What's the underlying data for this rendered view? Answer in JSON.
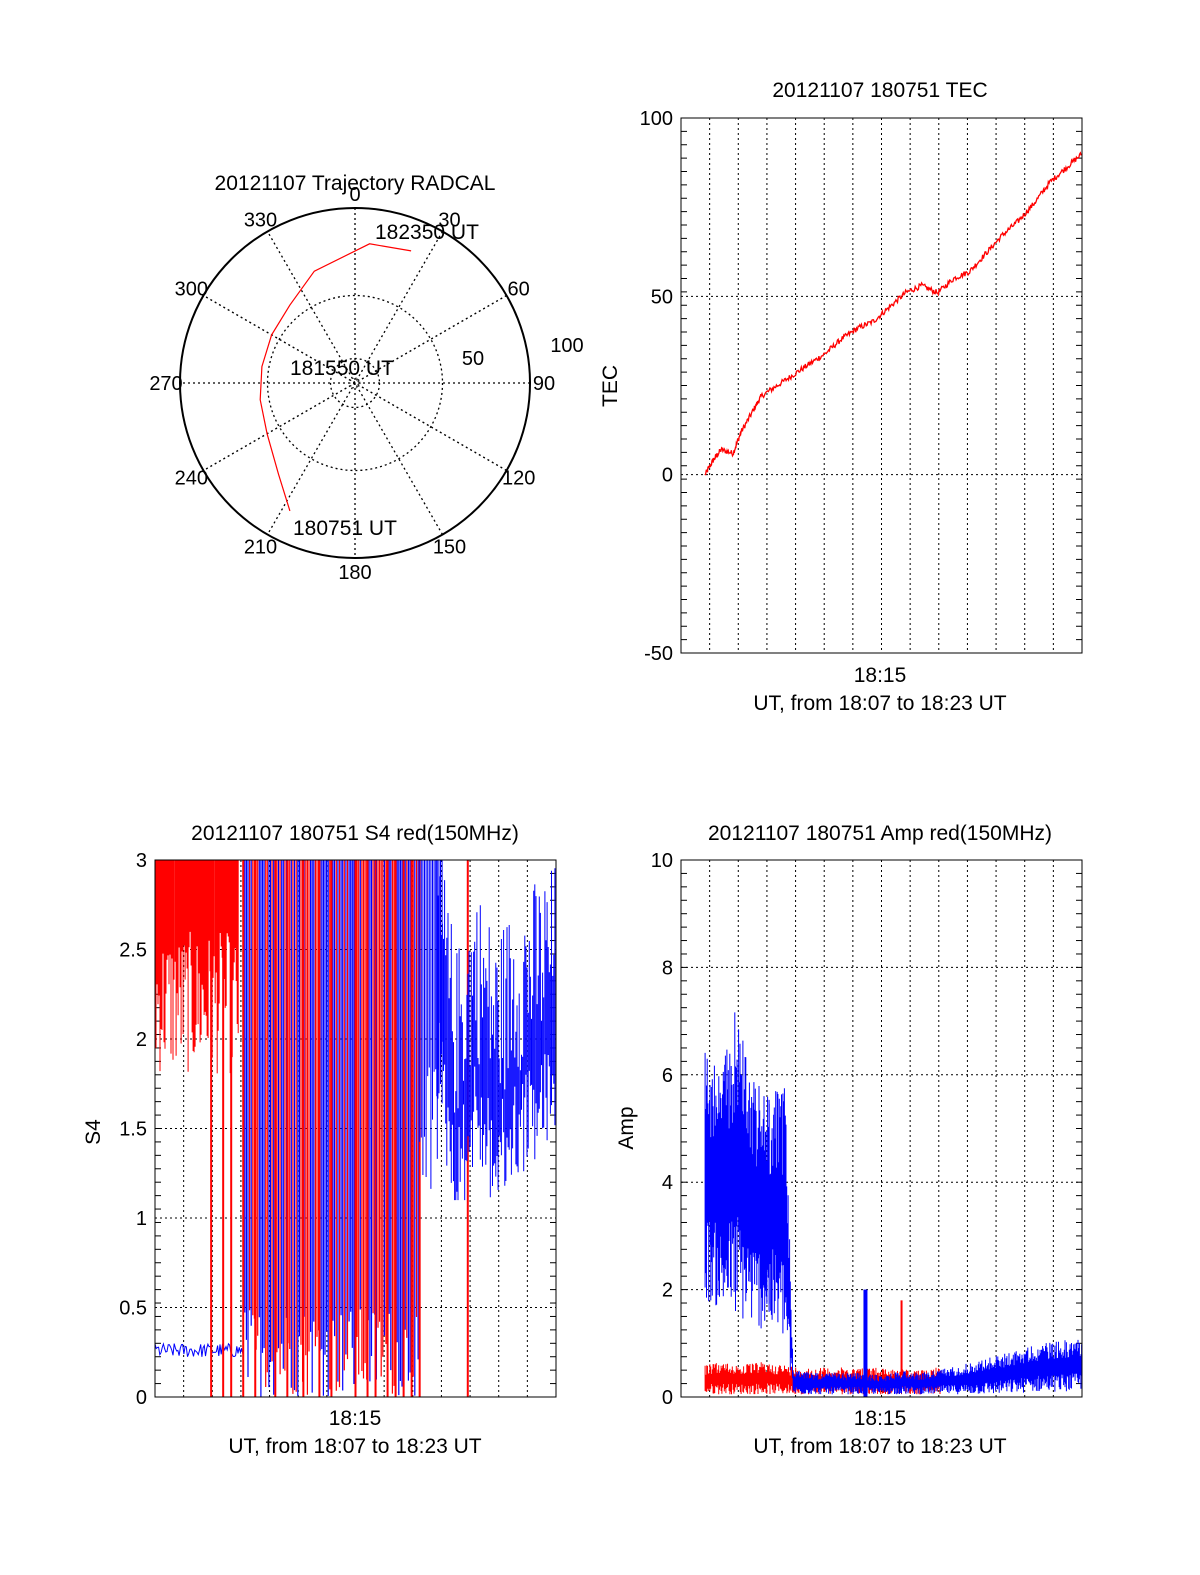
{
  "colors": {
    "red_series": "#ff0000",
    "blue_series": "#0000ff",
    "grid": "#000000",
    "background": "#ffffff"
  },
  "chart_data": [
    {
      "id": "trajectory",
      "type": "polar",
      "title": "20121107 Trajectory RADCAL",
      "angle_labels": [
        "0",
        "30",
        "60",
        "90",
        "120",
        "150",
        "180",
        "210",
        "240",
        "270",
        "300",
        "330"
      ],
      "radial_labels": [
        "50",
        "100"
      ],
      "radial_range": [
        0,
        100
      ],
      "annotations": [
        "182350 UT",
        "181550 UT",
        "180751 UT"
      ],
      "trajectory": {
        "color": "red",
        "points": [
          {
            "azimuth": 23,
            "elevation": 18
          },
          {
            "azimuth": 6,
            "elevation": 20
          },
          {
            "azimuth": -20,
            "elevation": 32
          },
          {
            "azimuth": -40,
            "elevation": 42
          },
          {
            "azimuth": -60,
            "elevation": 45
          },
          {
            "azimuth": -80,
            "elevation": 46
          },
          {
            "azimuth": -100,
            "elevation": 45
          },
          {
            "azimuth": -120,
            "elevation": 42
          },
          {
            "azimuth": -140,
            "elevation": 32
          },
          {
            "azimuth": -153,
            "elevation": 18
          }
        ]
      }
    },
    {
      "id": "tec",
      "type": "line",
      "title": "20121107 180751 TEC",
      "ylabel": "TEC",
      "xlabel": "UT, from 18:07 to 18:23 UT",
      "x_tick_label": "18:15",
      "y_ticks": [
        "-50",
        "0",
        "50",
        "100"
      ],
      "ylim": [
        -50,
        100
      ],
      "xlim": [
        0,
        1
      ],
      "grid": true,
      "series": [
        {
          "color": "red",
          "x": [
            0.06,
            0.08,
            0.1,
            0.13,
            0.15,
            0.18,
            0.2,
            0.24,
            0.28,
            0.32,
            0.36,
            0.4,
            0.44,
            0.48,
            0.52,
            0.56,
            0.6,
            0.64,
            0.68,
            0.72,
            0.76,
            0.8,
            0.84,
            0.88,
            0.92,
            0.96,
            1.0
          ],
          "y": [
            0,
            4,
            7,
            6,
            12,
            18,
            22,
            25,
            28,
            31,
            34,
            38,
            41,
            43,
            47,
            51,
            53,
            51,
            55,
            57,
            62,
            67,
            71,
            76,
            82,
            86,
            90
          ]
        }
      ]
    },
    {
      "id": "s4",
      "type": "line",
      "title": "20121107 180751 S4 red(150MHz)",
      "ylabel": "S4",
      "xlabel": "UT, from 18:07 to 18:23 UT",
      "x_tick_label": "18:15",
      "y_ticks": [
        "0",
        "0.5",
        "1",
        "1.5",
        "2",
        "2.5",
        "3"
      ],
      "ylim": [
        0,
        3
      ],
      "xlim": [
        0,
        1
      ],
      "grid": true,
      "series": [
        {
          "color": "red",
          "segments": [
            {
              "x_range": [
                0.0,
                0.21
              ],
              "low": 1.8,
              "high": 3.0,
              "note": "dense spikes near top"
            },
            {
              "x_range": [
                0.21,
                0.67
              ],
              "low": 0.0,
              "high": 3.0,
              "note": "full-range vertical spikes"
            }
          ],
          "spikes_x": [
            0.14,
            0.17,
            0.19,
            0.22,
            0.25,
            0.3,
            0.33,
            0.37,
            0.41,
            0.44,
            0.5,
            0.53,
            0.55,
            0.58,
            0.6,
            0.62,
            0.64,
            0.66,
            0.78
          ]
        },
        {
          "color": "blue",
          "segments": [
            {
              "x_range": [
                0.0,
                0.22
              ],
              "low": 0.22,
              "high": 0.3,
              "note": "flat ~0.25"
            },
            {
              "x_range": [
                0.22,
                0.66
              ],
              "low": 0.0,
              "high": 3.0,
              "note": "full-range spikes"
            },
            {
              "x_range": [
                0.66,
                1.0
              ],
              "low": 1.3,
              "high": 3.0,
              "note": "noisy ~1.8-2.2"
            }
          ],
          "trend_x": [
            0.7,
            0.75,
            0.8,
            0.85,
            0.9,
            0.95,
            1.0
          ],
          "trend_y": [
            2.3,
            1.5,
            1.9,
            1.6,
            1.8,
            1.9,
            2.0
          ]
        }
      ]
    },
    {
      "id": "amp",
      "type": "line",
      "title": "20121107 180751 Amp red(150MHz)",
      "ylabel": "Amp",
      "xlabel": "UT, from 18:07 to 18:23 UT",
      "x_tick_label": "18:15",
      "y_ticks": [
        "0",
        "2",
        "4",
        "6",
        "8",
        "10"
      ],
      "ylim": [
        0,
        10
      ],
      "xlim": [
        0,
        1
      ],
      "grid": true,
      "series": [
        {
          "color": "blue",
          "x": [
            0.06,
            0.1,
            0.14,
            0.18,
            0.22,
            0.26,
            0.28,
            0.35,
            0.45,
            0.5,
            0.55,
            0.6,
            0.7,
            0.8,
            0.9,
            1.0
          ],
          "y_low": [
            1.8,
            1.6,
            1.4,
            1.3,
            1.2,
            1.0,
            0.05,
            0.05,
            0.05,
            0.05,
            0.05,
            0.05,
            0.05,
            0.05,
            0.1,
            0.1
          ],
          "y_high": [
            6.6,
            6.0,
            7.4,
            5.9,
            5.7,
            5.8,
            0.5,
            0.45,
            0.45,
            0.4,
            0.5,
            0.45,
            0.6,
            0.8,
            1.0,
            1.1
          ],
          "peak": {
            "x": 0.46,
            "y": 2.0
          }
        },
        {
          "color": "red",
          "x": [
            0.06,
            0.1,
            0.15,
            0.2,
            0.26,
            0.3,
            0.4,
            0.5,
            0.6,
            0.65
          ],
          "y_low": [
            0.05,
            0.05,
            0.05,
            0.05,
            0.05,
            0.05,
            0.05,
            0.05,
            0.05,
            0.05
          ],
          "y_high": [
            0.6,
            0.65,
            0.6,
            0.65,
            0.6,
            0.55,
            0.55,
            0.55,
            0.5,
            0.6
          ],
          "peak": {
            "x": 0.55,
            "y": 1.8
          }
        }
      ]
    }
  ]
}
